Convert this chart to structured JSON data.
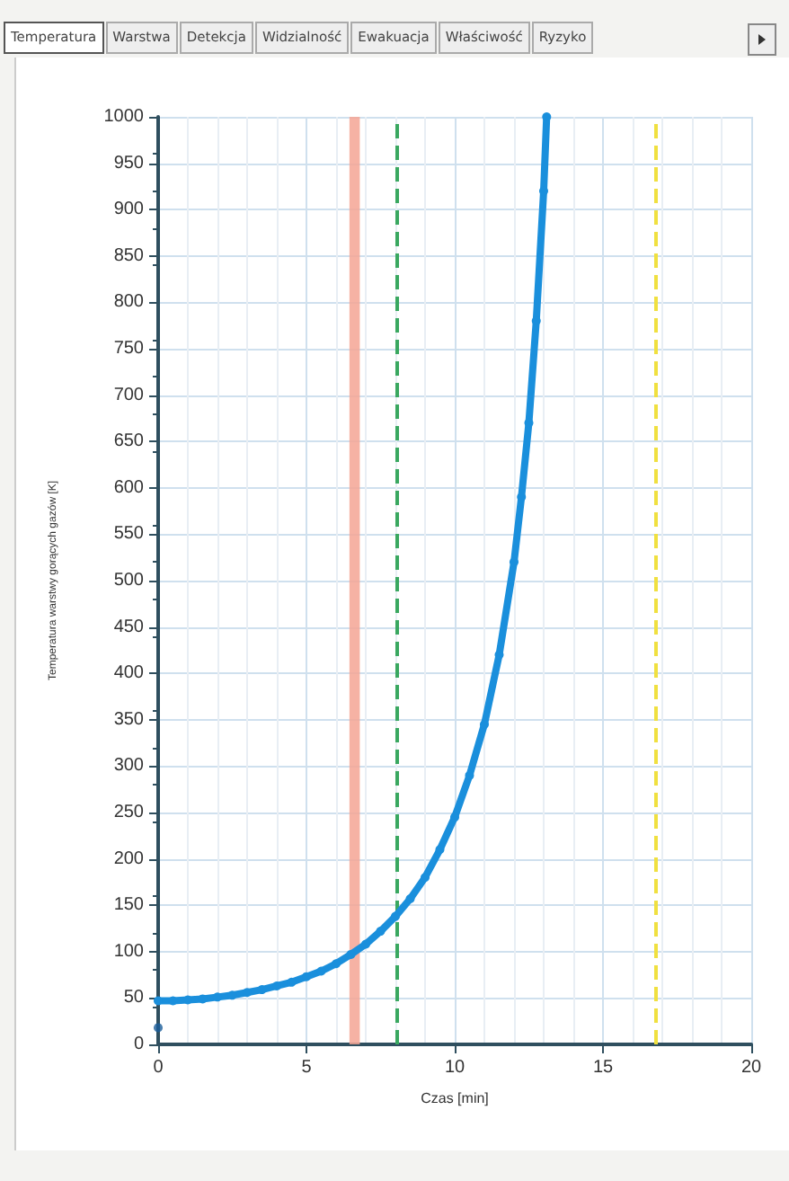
{
  "chart_data": {
    "type": "line",
    "xlabel": "Czas [min]",
    "ylabel": "Temperatura warstwy gorących gazów [K]",
    "annotations": [
      "Temperatura",
      "Warstwa",
      "Detekcja",
      "Widzialność",
      "Ewakuacja",
      "Właściwość",
      "Ryzyko"
    ],
    "x": [
      0,
      0.5,
      1,
      1.5,
      2,
      2.5,
      3,
      3.5,
      4,
      4.5,
      5,
      5.5,
      6,
      6.5,
      7,
      7.5,
      8,
      8.5,
      9,
      9.5,
      10,
      10.5,
      11,
      11.5,
      12,
      12.25,
      12.5,
      12.75,
      13,
      13.1
    ],
    "series": [
      {
        "color": "#1a8fdc",
        "values": [
          47,
          47,
          48,
          49,
          51,
          53,
          56,
          59,
          63,
          67,
          73,
          79,
          87,
          97,
          108,
          122,
          138,
          157,
          180,
          210,
          245,
          290,
          345,
          420,
          520,
          590,
          670,
          780,
          920,
          1000
        ]
      },
      {
        "type": "scatter",
        "color": "#1a5c9a",
        "x": [
          0
        ],
        "values": [
          18
        ]
      }
    ],
    "xlim": [
      0,
      20
    ],
    "xticks": [
      0,
      5,
      10,
      15,
      20
    ],
    "ylim": [
      0,
      1000
    ],
    "yticks": [
      0,
      50,
      100,
      150,
      200,
      250,
      300,
      350,
      400,
      450,
      500,
      550,
      600,
      650,
      700,
      750,
      800,
      850,
      900,
      950,
      1000
    ],
    "bands": [
      {
        "axis": "x",
        "from": 6.45,
        "to": 6.8,
        "color": "#f4a494"
      }
    ],
    "ref_lines": [
      {
        "axis": "x",
        "value": 8.05,
        "color": "#3aa860",
        "line_style": "dashed"
      },
      {
        "axis": "x",
        "value": 16.8,
        "color": "#f0e040",
        "line_style": "dashed"
      }
    ],
    "grid": true,
    "marker": "circle",
    "line_style": "solid"
  }
}
